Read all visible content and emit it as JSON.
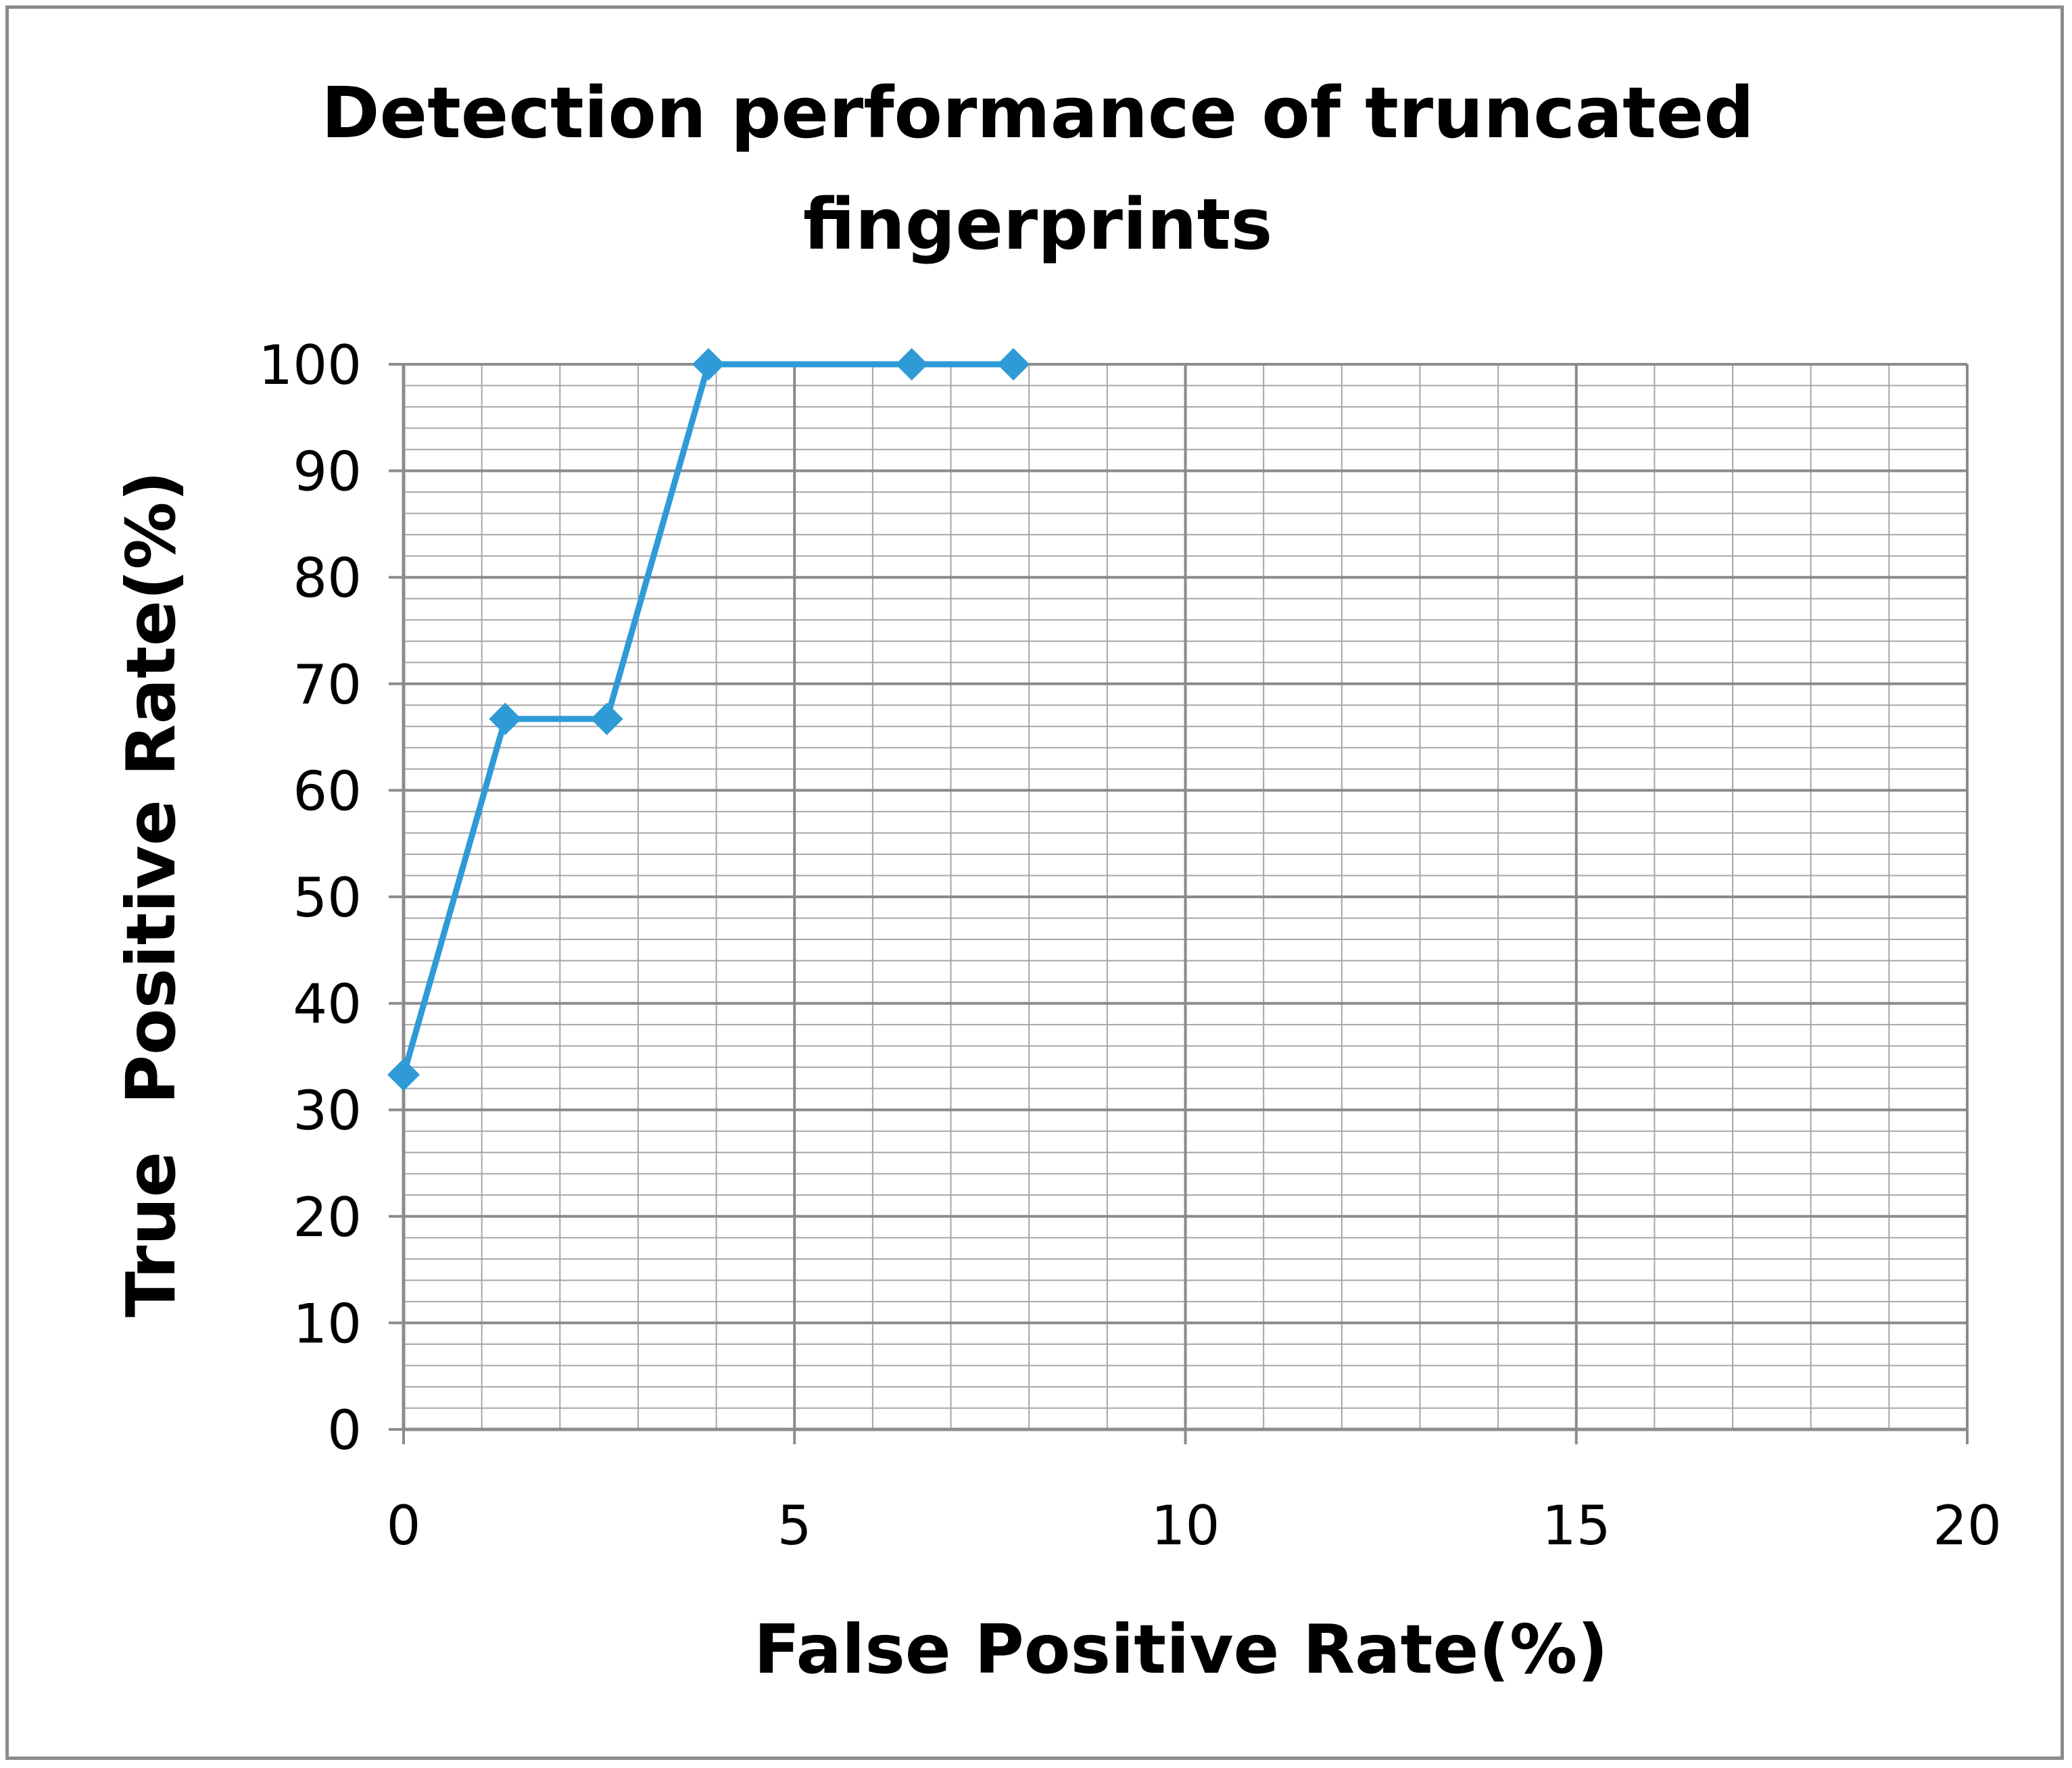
{
  "chart_data": {
    "type": "line",
    "title_lines": [
      "Detection performance of truncated",
      "fingerprints"
    ],
    "xlabel": "False Positive Rate(%)",
    "ylabel": "True  Positive Rate(%)",
    "xlim": [
      0,
      20
    ],
    "ylim": [
      0,
      100
    ],
    "x_ticks": [
      "0",
      "5",
      "10",
      "15",
      "20"
    ],
    "y_ticks": [
      "0",
      "10",
      "20",
      "30",
      "40",
      "50",
      "60",
      "70",
      "80",
      "90",
      "100"
    ],
    "grid": true,
    "legend": "none",
    "series": [
      {
        "x": [
          0,
          1.3,
          2.6,
          3.9,
          6.5,
          7.8
        ],
        "y": [
          33.3,
          66.7,
          66.7,
          100,
          100,
          100
        ],
        "color": "#2e9bd6",
        "marker": "diamond"
      }
    ],
    "grid_color": "#a6a6a6",
    "axis_color": "#8c8c8c"
  }
}
